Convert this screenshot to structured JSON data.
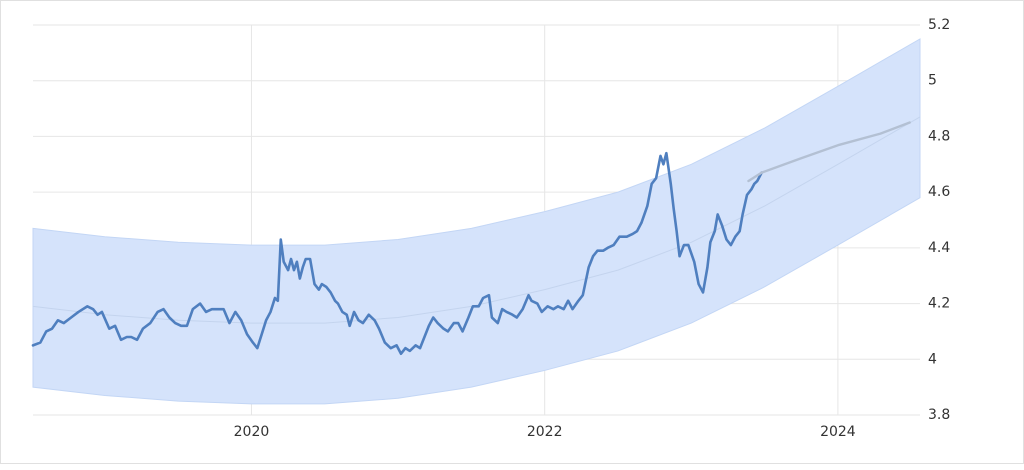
{
  "chart_data": {
    "type": "line",
    "xlim": [
      2018.51,
      2024.56
    ],
    "ylim": [
      3.8,
      5.2
    ],
    "xticks": [
      2020,
      2022,
      2024
    ],
    "yticks": [
      3.8,
      4,
      4.2,
      4.4,
      4.6,
      4.8,
      5,
      5.2
    ],
    "grid": true,
    "band": {
      "color": "#d5e3fb",
      "x": [
        2018.51,
        2019,
        2019.5,
        2020,
        2020.5,
        2021,
        2021.5,
        2022,
        2022.5,
        2023,
        2023.5,
        2024,
        2024.56
      ],
      "upper": [
        4.47,
        4.44,
        4.42,
        4.41,
        4.41,
        4.43,
        4.47,
        4.53,
        4.6,
        4.7,
        4.83,
        4.98,
        5.15
      ],
      "lower": [
        3.9,
        3.87,
        3.85,
        3.84,
        3.84,
        3.86,
        3.9,
        3.96,
        4.03,
        4.13,
        4.26,
        4.41,
        4.58
      ]
    },
    "series": [
      {
        "color": "#c4d4ee",
        "x": [
          2018.51,
          2019,
          2019.5,
          2020,
          2020.5,
          2021,
          2021.5,
          2022,
          2022.5,
          2023,
          2023.5,
          2024,
          2024.56
        ],
        "values": [
          4.19,
          4.16,
          4.14,
          4.13,
          4.13,
          4.15,
          4.19,
          4.25,
          4.32,
          4.42,
          4.55,
          4.7,
          4.87
        ]
      },
      {
        "color": "#4f7fbf",
        "x": [
          2018.51,
          2018.56,
          2018.6,
          2018.64,
          2018.68,
          2018.72,
          2018.77,
          2018.82,
          2018.88,
          2018.92,
          2018.95,
          2018.98,
          2019.03,
          2019.07,
          2019.11,
          2019.15,
          2019.18,
          2019.22,
          2019.26,
          2019.31,
          2019.36,
          2019.4,
          2019.44,
          2019.48,
          2019.52,
          2019.56,
          2019.6,
          2019.65,
          2019.69,
          2019.73,
          2019.77,
          2019.81,
          2019.85,
          2019.89,
          2019.93,
          2019.97,
          2020.01,
          2020.04,
          2020.07,
          2020.1,
          2020.13,
          2020.16,
          2020.18,
          2020.2,
          2020.22,
          2020.25,
          2020.27,
          2020.29,
          2020.31,
          2020.33,
          2020.35,
          2020.37,
          2020.4,
          2020.43,
          2020.46,
          2020.48,
          2020.51,
          2020.54,
          2020.57,
          2020.59,
          2020.62,
          2020.65,
          2020.67,
          2020.7,
          2020.73,
          2020.76,
          2020.8,
          2020.84,
          2020.87,
          2020.91,
          2020.95,
          2020.99,
          2021.02,
          2021.05,
          2021.08,
          2021.12,
          2021.15,
          2021.18,
          2021.21,
          2021.24,
          2021.27,
          2021.31,
          2021.34,
          2021.38,
          2021.41,
          2021.44,
          2021.48,
          2021.51,
          2021.55,
          2021.58,
          2021.62,
          2021.64,
          2021.68,
          2021.71,
          2021.74,
          2021.78,
          2021.81,
          2021.85,
          2021.89,
          2021.91,
          2021.95,
          2021.98,
          2022.02,
          2022.06,
          2022.09,
          2022.13,
          2022.16,
          2022.19,
          2022.23,
          2022.26,
          2022.3,
          2022.33,
          2022.36,
          2022.4,
          2022.43,
          2022.47,
          2022.51,
          2022.56,
          2022.6,
          2022.63,
          2022.66,
          2022.7,
          2022.73,
          2022.76,
          2022.79,
          2022.81,
          2022.83,
          2022.86,
          2022.88,
          2022.9,
          2022.92,
          2022.95,
          2022.98,
          2023.02,
          2023.05,
          2023.08,
          2023.11,
          2023.13,
          2023.16,
          2023.18,
          2023.21,
          2023.24,
          2023.27,
          2023.3,
          2023.33,
          2023.35,
          2023.38,
          2023.41,
          2023.43,
          2023.45,
          2023.48
        ],
        "values": [
          4.05,
          4.06,
          4.1,
          4.11,
          4.14,
          4.13,
          4.15,
          4.17,
          4.19,
          4.18,
          4.16,
          4.17,
          4.11,
          4.12,
          4.07,
          4.08,
          4.08,
          4.07,
          4.11,
          4.13,
          4.17,
          4.18,
          4.15,
          4.13,
          4.12,
          4.12,
          4.18,
          4.2,
          4.17,
          4.18,
          4.18,
          4.18,
          4.13,
          4.17,
          4.14,
          4.09,
          4.06,
          4.04,
          4.09,
          4.14,
          4.17,
          4.22,
          4.21,
          4.43,
          4.35,
          4.32,
          4.36,
          4.32,
          4.35,
          4.29,
          4.33,
          4.36,
          4.36,
          4.27,
          4.25,
          4.27,
          4.26,
          4.24,
          4.21,
          4.2,
          4.17,
          4.16,
          4.12,
          4.17,
          4.14,
          4.13,
          4.16,
          4.14,
          4.11,
          4.06,
          4.04,
          4.05,
          4.02,
          4.04,
          4.03,
          4.05,
          4.04,
          4.08,
          4.12,
          4.15,
          4.13,
          4.11,
          4.1,
          4.13,
          4.13,
          4.1,
          4.15,
          4.19,
          4.19,
          4.22,
          4.23,
          4.15,
          4.13,
          4.18,
          4.17,
          4.16,
          4.15,
          4.18,
          4.23,
          4.21,
          4.2,
          4.17,
          4.19,
          4.18,
          4.19,
          4.18,
          4.21,
          4.18,
          4.21,
          4.23,
          4.33,
          4.37,
          4.39,
          4.39,
          4.4,
          4.41,
          4.44,
          4.44,
          4.45,
          4.46,
          4.49,
          4.55,
          4.63,
          4.65,
          4.73,
          4.7,
          4.74,
          4.63,
          4.54,
          4.46,
          4.37,
          4.41,
          4.41,
          4.35,
          4.27,
          4.24,
          4.33,
          4.42,
          4.46,
          4.52,
          4.48,
          4.43,
          4.41,
          4.44,
          4.46,
          4.52,
          4.59,
          4.61,
          4.63,
          4.64,
          4.67
        ]
      },
      {
        "color": "#b3c0d3",
        "x": [
          2023.39,
          2023.48,
          2023.74,
          2024.01,
          2024.29,
          2024.49
        ],
        "values": [
          4.64,
          4.67,
          4.72,
          4.77,
          4.81,
          4.85
        ]
      }
    ]
  }
}
